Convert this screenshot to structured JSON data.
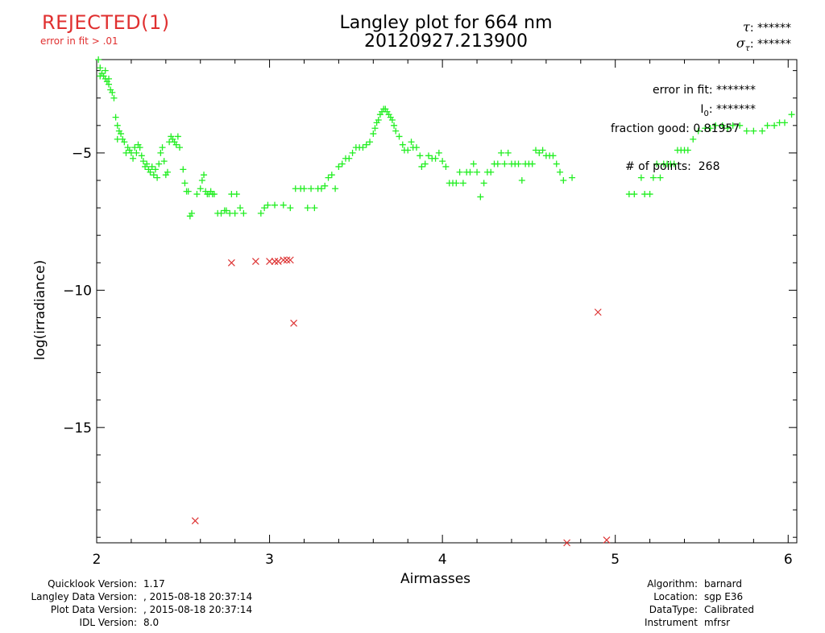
{
  "status": {
    "label": "REJECTED(1)",
    "reason": "error in fit > .01",
    "color": "#e03030"
  },
  "header": {
    "title_line1": "Langley plot for 664 nm",
    "title_line2": "20120927.213900",
    "tau_label": "τ",
    "tau_value": ": ******",
    "sigma_tau_label": "σ",
    "sigma_tau_sub": "τ",
    "sigma_tau_value": ": ******"
  },
  "stats": {
    "error_in_fit_label": "error in fit:",
    "error_in_fit_value": "*******",
    "i0_label": "I",
    "i0_sub": "0",
    "i0_value": ": *******",
    "fraction_good_label": "fraction good:",
    "fraction_good_value": "0.81957",
    "num_points_label": "# of points:",
    "num_points_value": "268"
  },
  "footer_left": {
    "quicklook_label": "Quicklook Version:",
    "quicklook_value": "1.17",
    "langley_label": "Langley Data Version:",
    "langley_value": ", 2015-08-18 20:37:14",
    "plot_label": "Plot Data Version:",
    "plot_value": ", 2015-08-18 20:37:14",
    "idl_label": "IDL Version:",
    "idl_value": "8.0"
  },
  "footer_right": {
    "algorithm_label": "Algorithm:",
    "algorithm_value": "barnard",
    "location_label": "Location:",
    "location_value": "sgp E36",
    "datatype_label": "DataType:",
    "datatype_value": "Calibrated",
    "instrument_label": "Instrument",
    "instrument_value": "mfrsr"
  },
  "chart_data": {
    "type": "scatter",
    "xlabel": "Airmasses",
    "ylabel": "log(irradiance)",
    "xlim": [
      2,
      6.05
    ],
    "ylim": [
      -19.2,
      -1.6
    ],
    "xticks": [
      2,
      3,
      4,
      5,
      6
    ],
    "yticks": [
      -5,
      -10,
      -15
    ],
    "colors": {
      "good": "#22ee22",
      "rejected": "#dd3333"
    },
    "series": [
      {
        "marker": "plus",
        "points": [
          [
            2.01,
            -1.6
          ],
          [
            2.02,
            -1.9
          ],
          [
            2.03,
            -2.1
          ],
          [
            2.04,
            -2.2
          ],
          [
            2.05,
            -2.3
          ],
          [
            2.06,
            -2.4
          ],
          [
            2.07,
            -2.5
          ],
          [
            2.08,
            -2.7
          ],
          [
            2.09,
            -2.8
          ],
          [
            2.1,
            -3.0
          ],
          [
            2.02,
            -2.2
          ],
          [
            2.05,
            -2.0
          ],
          [
            2.07,
            -2.3
          ],
          [
            2.11,
            -3.7
          ],
          [
            2.12,
            -4.0
          ],
          [
            2.13,
            -4.2
          ],
          [
            2.12,
            -4.5
          ],
          [
            2.14,
            -4.3
          ],
          [
            2.15,
            -4.5
          ],
          [
            2.16,
            -4.6
          ],
          [
            2.17,
            -5.0
          ],
          [
            2.18,
            -4.8
          ],
          [
            2.19,
            -4.9
          ],
          [
            2.2,
            -5.0
          ],
          [
            2.21,
            -5.2
          ],
          [
            2.22,
            -4.8
          ],
          [
            2.23,
            -5.0
          ],
          [
            2.24,
            -4.7
          ],
          [
            2.25,
            -4.8
          ],
          [
            2.26,
            -5.1
          ],
          [
            2.27,
            -5.3
          ],
          [
            2.28,
            -5.5
          ],
          [
            2.29,
            -5.4
          ],
          [
            2.3,
            -5.6
          ],
          [
            2.31,
            -5.7
          ],
          [
            2.32,
            -5.5
          ],
          [
            2.33,
            -5.8
          ],
          [
            2.34,
            -5.6
          ],
          [
            2.35,
            -5.9
          ],
          [
            2.36,
            -5.4
          ],
          [
            2.37,
            -5.0
          ],
          [
            2.38,
            -4.8
          ],
          [
            2.39,
            -5.3
          ],
          [
            2.4,
            -5.8
          ],
          [
            2.41,
            -5.7
          ],
          [
            2.42,
            -4.6
          ],
          [
            2.43,
            -4.4
          ],
          [
            2.44,
            -4.5
          ],
          [
            2.45,
            -4.6
          ],
          [
            2.46,
            -4.7
          ],
          [
            2.47,
            -4.4
          ],
          [
            2.48,
            -4.8
          ],
          [
            2.5,
            -5.6
          ],
          [
            2.51,
            -6.1
          ],
          [
            2.52,
            -6.4
          ],
          [
            2.53,
            -6.4
          ],
          [
            2.54,
            -7.3
          ],
          [
            2.55,
            -7.2
          ],
          [
            2.58,
            -6.5
          ],
          [
            2.6,
            -6.3
          ],
          [
            2.61,
            -6.0
          ],
          [
            2.62,
            -5.8
          ],
          [
            2.63,
            -6.4
          ],
          [
            2.64,
            -6.5
          ],
          [
            2.65,
            -6.5
          ],
          [
            2.66,
            -6.4
          ],
          [
            2.67,
            -6.5
          ],
          [
            2.68,
            -6.5
          ],
          [
            2.7,
            -7.2
          ],
          [
            2.72,
            -7.2
          ],
          [
            2.74,
            -7.1
          ],
          [
            2.75,
            -7.1
          ],
          [
            2.77,
            -7.2
          ],
          [
            2.78,
            -6.5
          ],
          [
            2.8,
            -7.2
          ],
          [
            2.81,
            -6.5
          ],
          [
            2.83,
            -7.0
          ],
          [
            2.85,
            -7.2
          ],
          [
            2.95,
            -7.2
          ],
          [
            2.97,
            -7.0
          ],
          [
            2.99,
            -6.9
          ],
          [
            3.03,
            -6.9
          ],
          [
            3.08,
            -6.9
          ],
          [
            3.12,
            -7.0
          ],
          [
            3.15,
            -6.3
          ],
          [
            3.18,
            -6.3
          ],
          [
            3.2,
            -6.3
          ],
          [
            3.22,
            -7.0
          ],
          [
            3.24,
            -6.3
          ],
          [
            3.26,
            -7.0
          ],
          [
            3.28,
            -6.3
          ],
          [
            3.3,
            -6.3
          ],
          [
            3.32,
            -6.2
          ],
          [
            3.34,
            -5.9
          ],
          [
            3.36,
            -5.8
          ],
          [
            3.38,
            -6.3
          ],
          [
            3.4,
            -5.5
          ],
          [
            3.42,
            -5.4
          ],
          [
            3.44,
            -5.2
          ],
          [
            3.46,
            -5.2
          ],
          [
            3.48,
            -5.0
          ],
          [
            3.5,
            -4.8
          ],
          [
            3.52,
            -4.8
          ],
          [
            3.54,
            -4.8
          ],
          [
            3.56,
            -4.7
          ],
          [
            3.58,
            -4.6
          ],
          [
            3.6,
            -4.3
          ],
          [
            3.61,
            -4.1
          ],
          [
            3.62,
            -3.9
          ],
          [
            3.63,
            -3.8
          ],
          [
            3.64,
            -3.6
          ],
          [
            3.65,
            -3.5
          ],
          [
            3.66,
            -3.4
          ],
          [
            3.67,
            -3.4
          ],
          [
            3.68,
            -3.5
          ],
          [
            3.69,
            -3.6
          ],
          [
            3.7,
            -3.7
          ],
          [
            3.71,
            -3.8
          ],
          [
            3.72,
            -4.0
          ],
          [
            3.73,
            -4.2
          ],
          [
            3.75,
            -4.4
          ],
          [
            3.77,
            -4.7
          ],
          [
            3.78,
            -4.9
          ],
          [
            3.8,
            -4.9
          ],
          [
            3.82,
            -4.6
          ],
          [
            3.83,
            -4.8
          ],
          [
            3.85,
            -4.8
          ],
          [
            3.87,
            -5.1
          ],
          [
            3.88,
            -5.5
          ],
          [
            3.9,
            -5.4
          ],
          [
            3.92,
            -5.1
          ],
          [
            3.94,
            -5.2
          ],
          [
            3.96,
            -5.2
          ],
          [
            3.98,
            -5.0
          ],
          [
            4.0,
            -5.3
          ],
          [
            4.02,
            -5.5
          ],
          [
            4.04,
            -6.1
          ],
          [
            4.06,
            -6.1
          ],
          [
            4.08,
            -6.1
          ],
          [
            4.1,
            -5.7
          ],
          [
            4.12,
            -6.1
          ],
          [
            4.14,
            -5.7
          ],
          [
            4.16,
            -5.7
          ],
          [
            4.18,
            -5.4
          ],
          [
            4.2,
            -5.7
          ],
          [
            4.22,
            -6.6
          ],
          [
            4.24,
            -6.1
          ],
          [
            4.26,
            -5.7
          ],
          [
            4.28,
            -5.7
          ],
          [
            4.3,
            -5.4
          ],
          [
            4.32,
            -5.4
          ],
          [
            4.34,
            -5.0
          ],
          [
            4.36,
            -5.4
          ],
          [
            4.38,
            -5.0
          ],
          [
            4.4,
            -5.4
          ],
          [
            4.42,
            -5.4
          ],
          [
            4.44,
            -5.4
          ],
          [
            4.46,
            -6.0
          ],
          [
            4.48,
            -5.4
          ],
          [
            4.5,
            -5.4
          ],
          [
            4.52,
            -5.4
          ],
          [
            4.54,
            -4.9
          ],
          [
            4.56,
            -5.0
          ],
          [
            4.58,
            -4.9
          ],
          [
            4.6,
            -5.1
          ],
          [
            4.62,
            -5.1
          ],
          [
            4.64,
            -5.1
          ],
          [
            4.66,
            -5.4
          ],
          [
            4.68,
            -5.7
          ],
          [
            4.7,
            -6.0
          ],
          [
            4.75,
            -5.9
          ],
          [
            5.08,
            -6.5
          ],
          [
            5.11,
            -6.5
          ],
          [
            5.15,
            -5.9
          ],
          [
            5.17,
            -6.5
          ],
          [
            5.2,
            -6.5
          ],
          [
            5.22,
            -5.9
          ],
          [
            5.24,
            -5.4
          ],
          [
            5.26,
            -5.9
          ],
          [
            5.28,
            -5.4
          ],
          [
            5.3,
            -5.4
          ],
          [
            5.32,
            -5.4
          ],
          [
            5.34,
            -5.4
          ],
          [
            5.36,
            -4.9
          ],
          [
            5.38,
            -4.9
          ],
          [
            5.4,
            -4.9
          ],
          [
            5.42,
            -4.9
          ],
          [
            5.45,
            -4.5
          ],
          [
            5.48,
            -4.2
          ],
          [
            5.52,
            -4.1
          ],
          [
            5.55,
            -4.1
          ],
          [
            5.58,
            -4.0
          ],
          [
            5.62,
            -4.0
          ],
          [
            5.65,
            -4.1
          ],
          [
            5.68,
            -4.0
          ],
          [
            5.72,
            -4.0
          ],
          [
            5.76,
            -4.2
          ],
          [
            5.8,
            -4.2
          ],
          [
            5.85,
            -4.2
          ],
          [
            5.88,
            -4.0
          ],
          [
            5.92,
            -4.0
          ],
          [
            5.95,
            -3.9
          ],
          [
            5.98,
            -3.9
          ],
          [
            6.02,
            -3.6
          ]
        ]
      },
      {
        "marker": "cross",
        "points": [
          [
            2.57,
            -18.4
          ],
          [
            2.78,
            -9.0
          ],
          [
            2.92,
            -8.95
          ],
          [
            3.0,
            -8.95
          ],
          [
            3.03,
            -8.95
          ],
          [
            3.05,
            -8.95
          ],
          [
            3.08,
            -8.9
          ],
          [
            3.1,
            -8.9
          ],
          [
            3.12,
            -8.9
          ],
          [
            3.14,
            -11.2
          ],
          [
            4.72,
            -19.2
          ],
          [
            4.9,
            -10.8
          ],
          [
            4.95,
            -19.1
          ]
        ]
      }
    ]
  }
}
